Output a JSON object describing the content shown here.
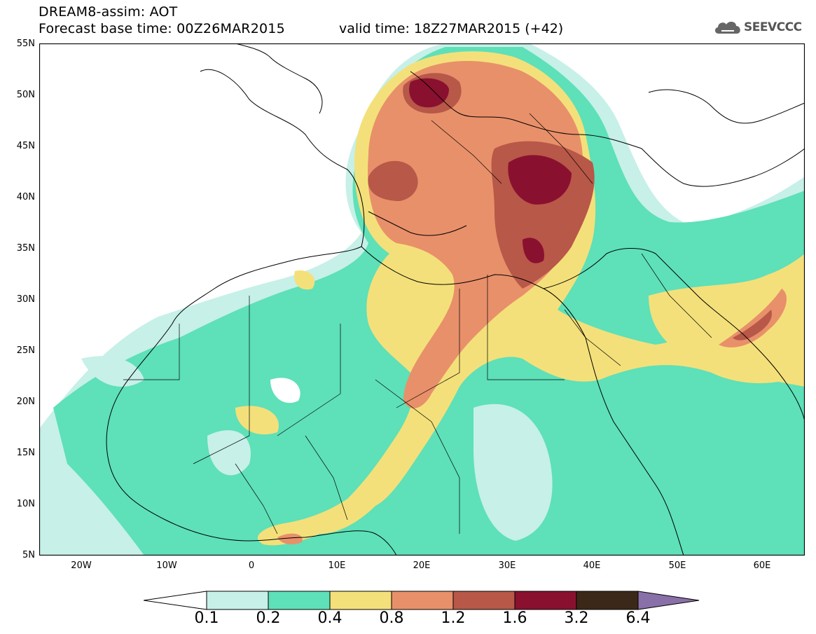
{
  "header": {
    "title_line1": "DREAM8-assim: AOT",
    "title_line2": "Forecast base time: 00Z26MAR2015",
    "valid_time": "valid time: 18Z27MAR2015 (+42)"
  },
  "logo": {
    "text": "SEEVCCC",
    "icon": "cloud-icon"
  },
  "map": {
    "lon_range": [
      -25,
      65
    ],
    "lat_range": [
      5,
      55
    ],
    "lat_ticks": [
      "55N",
      "50N",
      "45N",
      "40N",
      "35N",
      "30N",
      "25N",
      "20N",
      "15N",
      "10N",
      "5N"
    ],
    "lon_ticks": [
      "20W",
      "10W",
      "0",
      "10E",
      "20E",
      "30E",
      "40E",
      "50E",
      "60E"
    ]
  },
  "colorbar": {
    "levels": [
      "0.1",
      "0.2",
      "0.4",
      "0.8",
      "1.2",
      "1.6",
      "3.2",
      "6.4"
    ],
    "colors": [
      "#ffffff",
      "#c6f0e8",
      "#5ee0b8",
      "#f4e07a",
      "#e8906a",
      "#b85848",
      "#8a1030",
      "#3c2818",
      "#8a70a8"
    ]
  }
}
